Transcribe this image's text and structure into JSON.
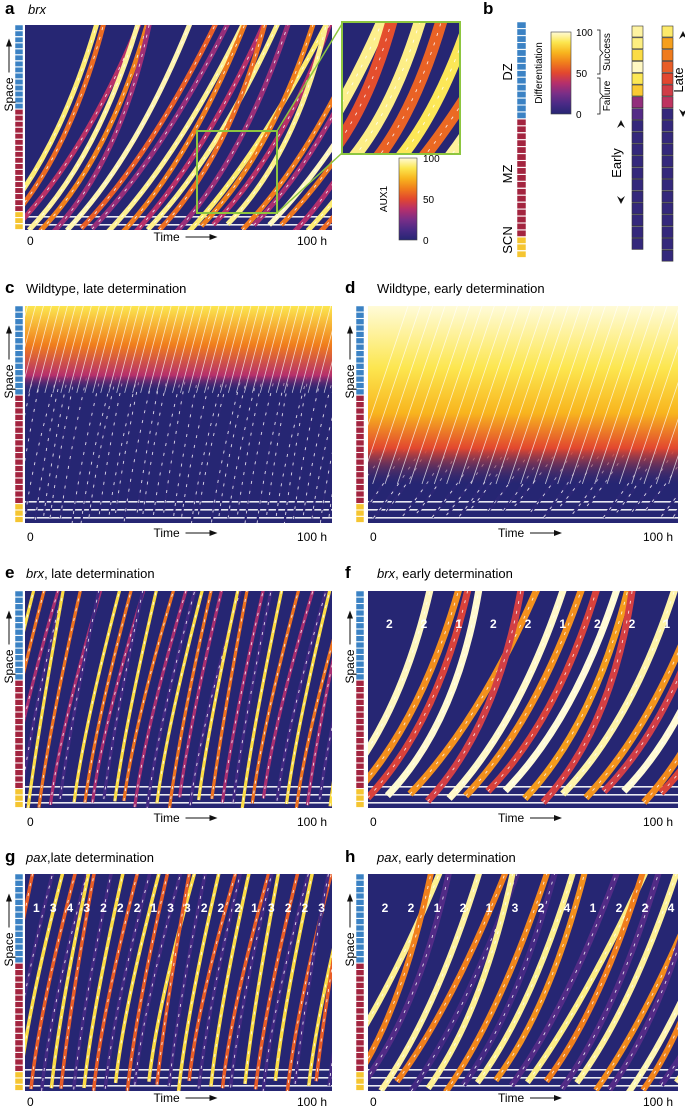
{
  "colors": {
    "background": "#262673",
    "dz": "#3b82c4",
    "mz": "#a3243f",
    "scn": "#f5c531",
    "zoom_box": "#8dc63f",
    "ramp": [
      "#262673",
      "#4a2a86",
      "#7a2e87",
      "#b52f6c",
      "#e2472f",
      "#f07d1c",
      "#f8b51e",
      "#fce64f",
      "#fffbd8"
    ]
  },
  "labels": {
    "time": "Time",
    "time_start": "0",
    "time_end": "100 h",
    "space": "Space"
  },
  "panel_a": {
    "letter": "a",
    "title": "brx"
  },
  "colorbar_aux1": {
    "label": "AUX1",
    "ticks": [
      "100",
      "50",
      "0"
    ]
  },
  "panel_b": {
    "letter": "b",
    "zones": [
      "DZ",
      "MZ",
      "SCN"
    ],
    "differentiation_label": "Differentiation",
    "ticks": [
      "100",
      "50",
      "0"
    ],
    "success": "Success",
    "failure": "Failure",
    "early": "Early",
    "late": "Late"
  },
  "panel_c": {
    "letter": "c",
    "title": "Wildtype, late determination"
  },
  "panel_d": {
    "letter": "d",
    "title": "Wildtype, early determination"
  },
  "panel_e": {
    "letter": "e",
    "title_italic": "brx",
    "title": ", late determination"
  },
  "panel_f": {
    "letter": "f",
    "title_italic": "brx",
    "title": ", early determination",
    "numbers": [
      "2",
      "2",
      "1",
      "2",
      "2",
      "1",
      "2",
      "2",
      "1"
    ]
  },
  "panel_g": {
    "letter": "g",
    "title_italic": "pax",
    "title": ",late determination",
    "numbers": [
      "1",
      "3",
      "4",
      "3",
      "2",
      "2",
      "2",
      "1",
      "3",
      "3",
      "2",
      "2",
      "2",
      "1",
      "3",
      "2",
      "2",
      "3"
    ]
  },
  "panel_h": {
    "letter": "h",
    "title_italic": "pax",
    "title": ", early determination",
    "numbers": [
      "2",
      "2",
      "1",
      "2",
      "1",
      "3",
      "2",
      "4",
      "1",
      "2",
      "2",
      "4"
    ]
  }
}
